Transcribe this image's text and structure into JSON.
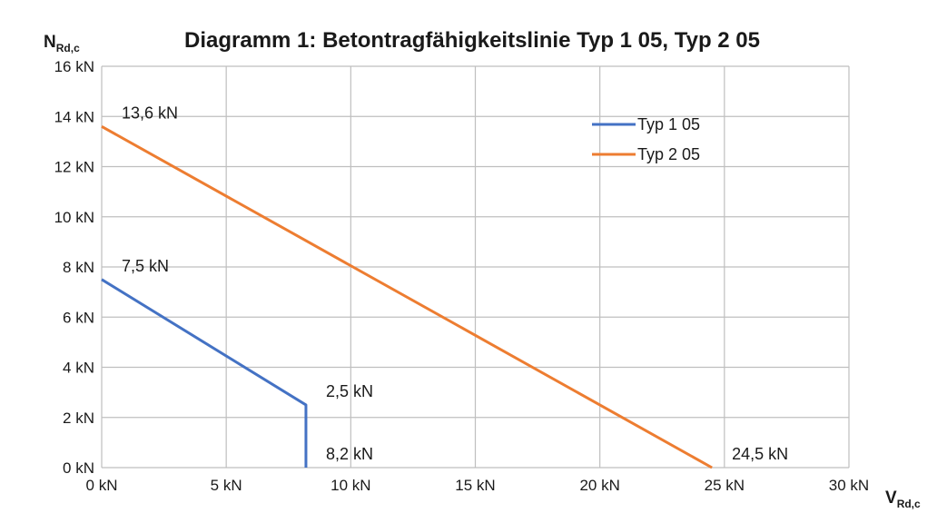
{
  "chart_data": {
    "type": "line",
    "title": "Diagramm 1: Betontragfähigkeitslinie Typ 1 05, Typ 2 05",
    "ylabel": {
      "main": "N",
      "sub": "Rd,c"
    },
    "xlabel": {
      "main": "V",
      "sub": "Rd,c"
    },
    "xlim": [
      0,
      30
    ],
    "ylim": [
      0,
      16
    ],
    "grid": true,
    "legend_position": "top-right",
    "x_ticks": [
      {
        "value": 0,
        "label": "0 kN"
      },
      {
        "value": 5,
        "label": "5 kN"
      },
      {
        "value": 10,
        "label": "10 kN"
      },
      {
        "value": 15,
        "label": "15 kN"
      },
      {
        "value": 20,
        "label": "20 kN"
      },
      {
        "value": 25,
        "label": "25 kN"
      },
      {
        "value": 30,
        "label": "30 kN"
      }
    ],
    "y_ticks": [
      {
        "value": 0,
        "label": "0 kN"
      },
      {
        "value": 2,
        "label": "2 kN"
      },
      {
        "value": 4,
        "label": "4 kN"
      },
      {
        "value": 6,
        "label": "6 kN"
      },
      {
        "value": 8,
        "label": "8 kN"
      },
      {
        "value": 10,
        "label": "10 kN"
      },
      {
        "value": 12,
        "label": "12 kN"
      },
      {
        "value": 14,
        "label": "14 kN"
      },
      {
        "value": 16,
        "label": "16 kN"
      }
    ],
    "series": [
      {
        "name": "Typ 1 05",
        "color": "#4472C4",
        "points": [
          {
            "x": 0,
            "y": 7.5
          },
          {
            "x": 8.2,
            "y": 2.5
          },
          {
            "x": 8.2,
            "y": 0
          }
        ]
      },
      {
        "name": "Typ 2 05",
        "color": "#ED7D31",
        "points": [
          {
            "x": 0,
            "y": 13.6
          },
          {
            "x": 24.5,
            "y": 0
          }
        ]
      }
    ],
    "annotations": [
      {
        "text": "13,6 kN",
        "x": 0,
        "y": 13.6,
        "anchor": "above-right"
      },
      {
        "text": "7,5 kN",
        "x": 0,
        "y": 7.5,
        "anchor": "above-right"
      },
      {
        "text": "2,5 kN",
        "x": 8.2,
        "y": 2.5,
        "anchor": "above-right"
      },
      {
        "text": "8,2 kN",
        "x": 8.2,
        "y": 0,
        "anchor": "above-right"
      },
      {
        "text": "24,5 kN",
        "x": 24.5,
        "y": 0,
        "anchor": "above-right"
      }
    ]
  }
}
